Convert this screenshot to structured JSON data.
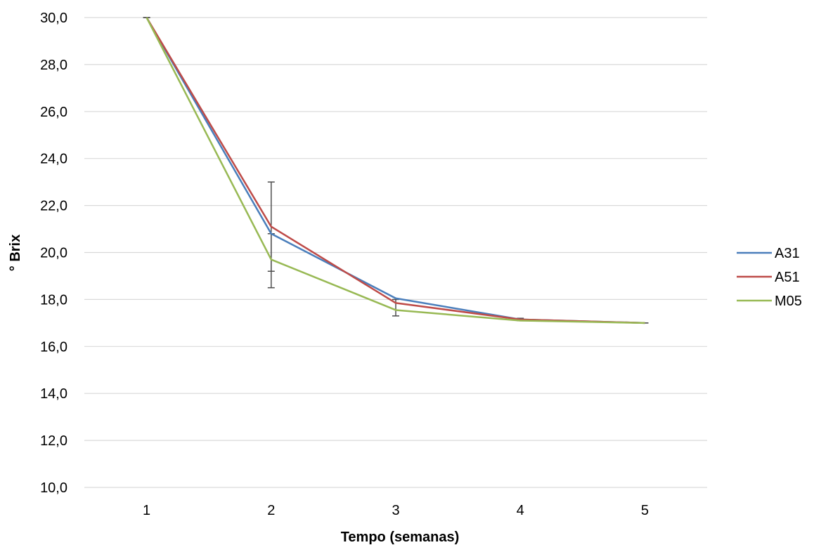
{
  "chart_data": {
    "type": "line",
    "title": "",
    "xlabel": "Tempo (semanas)",
    "ylabel": "° Brix",
    "categories": [
      "1",
      "2",
      "3",
      "4",
      "5"
    ],
    "ylim": [
      10,
      30
    ],
    "yticks": [
      10,
      12,
      14,
      16,
      18,
      20,
      22,
      24,
      26,
      28,
      30
    ],
    "ytick_labels": [
      "10,0",
      "12,0",
      "14,0",
      "16,0",
      "18,0",
      "20,0",
      "22,0",
      "24,0",
      "26,0",
      "28,0",
      "30,0"
    ],
    "grid": true,
    "legend_position": "right",
    "series": [
      {
        "name": "A31",
        "color": "#4a7ebb",
        "values": [
          30.0,
          20.8,
          18.05,
          17.15,
          17.0
        ]
      },
      {
        "name": "A51",
        "color": "#be4b48",
        "values": [
          30.0,
          21.1,
          17.85,
          17.15,
          17.0
        ]
      },
      {
        "name": "M05",
        "color": "#98b954",
        "values": [
          30.0,
          19.7,
          17.55,
          17.1,
          17.0
        ]
      }
    ],
    "error_bars": [
      {
        "x_index": 0,
        "low": 30.0,
        "high": 30.0
      },
      {
        "x_index": 1,
        "low": 18.5,
        "high": 23.0
      },
      {
        "x_index": 1,
        "low": 19.2,
        "high": 20.8
      },
      {
        "x_index": 2,
        "low": 17.3,
        "high": 18.0
      },
      {
        "x_index": 3,
        "low": 17.1,
        "high": 17.2
      },
      {
        "x_index": 4,
        "low": 17.0,
        "high": 17.0
      }
    ],
    "error_bar_color": "#4d4d4d",
    "grid_color": "#d9d9d9"
  }
}
